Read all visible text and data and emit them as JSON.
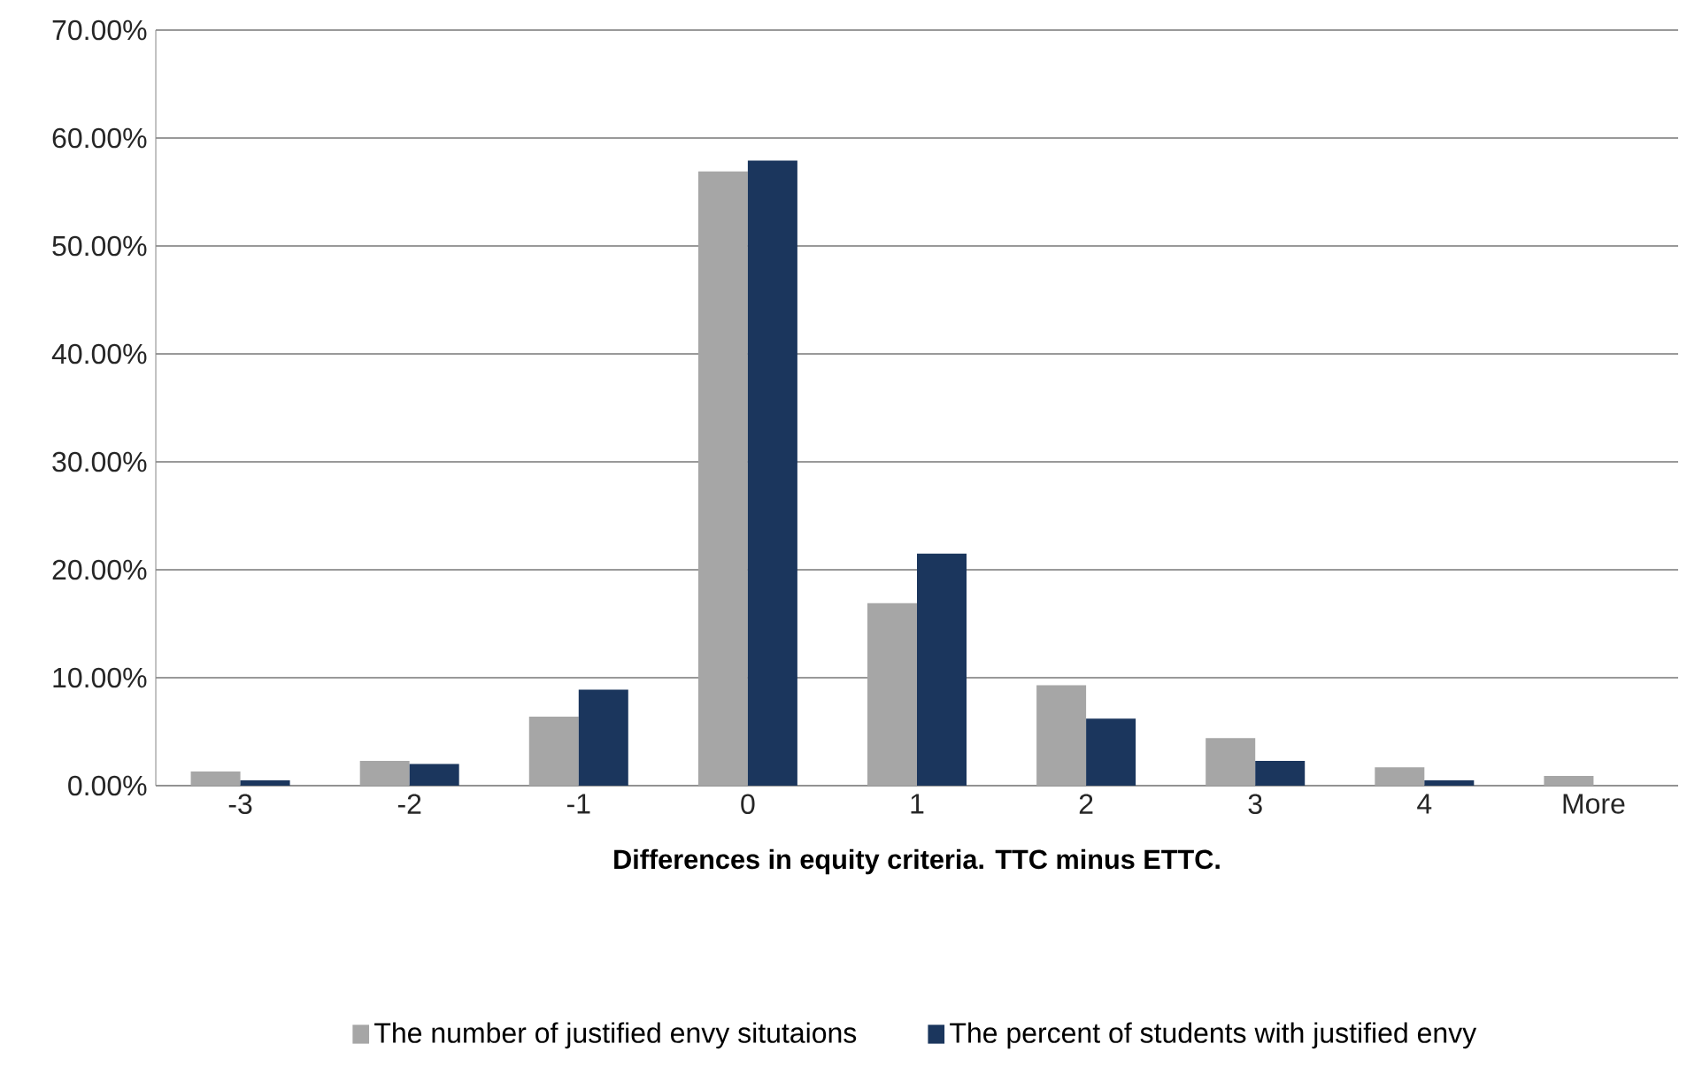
{
  "chart_data": {
    "type": "bar",
    "xlabel": "Differences in equity criteria. TTC minus ETTC.",
    "categories": [
      "-3",
      "-2",
      "-1",
      "0",
      "1",
      "2",
      "3",
      "4",
      "More"
    ],
    "series": [
      {
        "name": "The number of justified envy situtaions",
        "color": "#a6a6a6",
        "values": [
          1.3,
          2.3,
          6.4,
          56.9,
          16.9,
          9.3,
          4.4,
          1.7,
          0.9
        ]
      },
      {
        "name": "The percent of students with justified envy",
        "color": "#1b365d",
        "values": [
          0.5,
          2.0,
          8.9,
          57.9,
          21.5,
          6.2,
          2.3,
          0.5,
          0
        ]
      }
    ],
    "ylim": [
      0,
      70
    ],
    "yticks": [
      {
        "value": 0,
        "label": "0.00%"
      },
      {
        "value": 10,
        "label": "10.00%"
      },
      {
        "value": 20,
        "label": "20.00%"
      },
      {
        "value": 30,
        "label": "30.00%"
      },
      {
        "value": 40,
        "label": "40.00%"
      },
      {
        "value": 50,
        "label": "50.00%"
      },
      {
        "value": 60,
        "label": "60.00%"
      },
      {
        "value": 70,
        "label": "70.00%"
      }
    ],
    "grid": "y",
    "legend": "bottom"
  }
}
